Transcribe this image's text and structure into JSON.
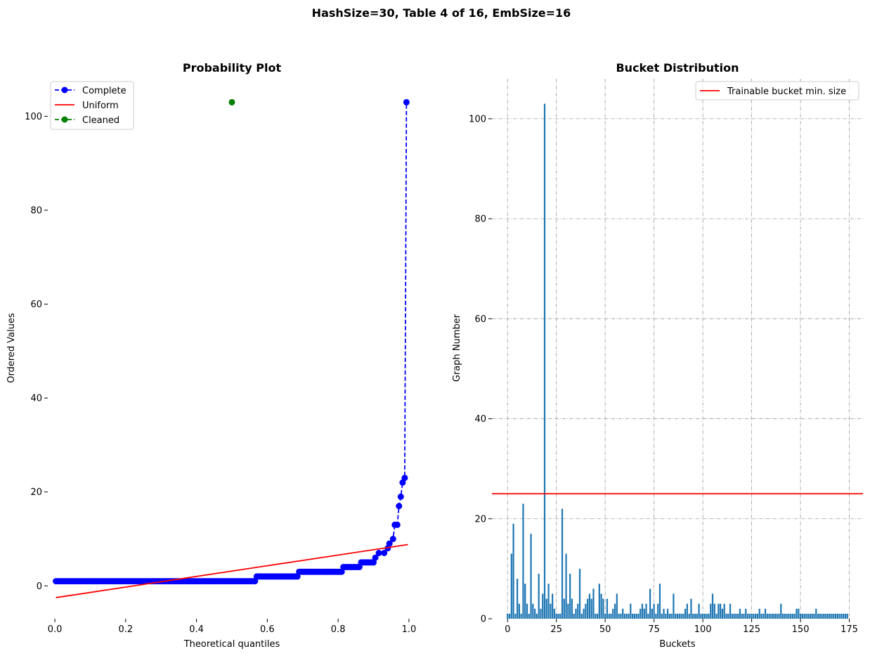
{
  "figure": {
    "suptitle": "HashSize=30, Table 4 of 16, EmbSize=16"
  },
  "chart_data": [
    {
      "type": "line",
      "title": "Probability Plot",
      "xlabel": "Theoretical quantiles",
      "ylabel": "Ordered Values",
      "xlim": [
        -0.02,
        1.02
      ],
      "ylim": [
        -7,
        108
      ],
      "xticks": [
        "0.0",
        "0.2",
        "0.4",
        "0.6",
        "0.8",
        "1.0"
      ],
      "yticks": [
        "0",
        "20",
        "40",
        "60",
        "80",
        "100"
      ],
      "grid": false,
      "legend": "top-left",
      "colors": {
        "complete": "#0000ff",
        "uniform": "#ff0000",
        "cleaned": "#008000"
      },
      "series": [
        {
          "name": "Complete",
          "style": "dashed-markers",
          "steps": [
            {
              "x_from": 0.003,
              "x_to": 0.565,
              "y": 1
            },
            {
              "x_from": 0.57,
              "x_to": 0.685,
              "y": 2
            },
            {
              "x_from": 0.69,
              "x_to": 0.81,
              "y": 3
            },
            {
              "x_from": 0.815,
              "x_to": 0.86,
              "y": 4
            },
            {
              "x_from": 0.865,
              "x_to": 0.9,
              "y": 5
            }
          ],
          "points": [
            [
              0.905,
              6
            ],
            [
              0.915,
              7
            ],
            [
              0.93,
              7
            ],
            [
              0.94,
              8
            ],
            [
              0.945,
              9
            ],
            [
              0.955,
              10
            ],
            [
              0.96,
              13
            ],
            [
              0.967,
              13
            ],
            [
              0.972,
              17
            ],
            [
              0.977,
              19
            ],
            [
              0.982,
              22
            ],
            [
              0.988,
              23
            ],
            [
              0.993,
              103
            ]
          ]
        },
        {
          "name": "Uniform",
          "style": "solid",
          "x": [
            0.003,
            0.997
          ],
          "y": [
            -2.5,
            8.8
          ]
        },
        {
          "name": "Cleaned",
          "style": "markers",
          "x": [
            0.5
          ],
          "y": [
            103
          ]
        }
      ]
    },
    {
      "type": "bar",
      "title": "Bucket Distribution",
      "xlabel": "Buckets",
      "ylabel": "Graph Number",
      "xlim": [
        -8,
        182
      ],
      "ylim": [
        0,
        108
      ],
      "xticks": [
        "0",
        "25",
        "50",
        "75",
        "100",
        "125",
        "150",
        "175"
      ],
      "yticks": [
        "0",
        "20",
        "40",
        "60",
        "80",
        "100"
      ],
      "grid": true,
      "legend": "top-right",
      "colors": {
        "bars": "#1f77b4",
        "threshold": "#ff0000"
      },
      "threshold": {
        "name": "Trainable bucket min. size",
        "value": 25
      },
      "values": [
        1,
        1,
        13,
        19,
        1,
        8,
        3,
        1,
        23,
        7,
        3,
        1,
        17,
        3,
        2,
        1,
        9,
        2,
        5,
        103,
        4,
        7,
        3,
        5,
        2,
        1,
        1,
        1,
        22,
        4,
        13,
        3,
        9,
        4,
        1,
        2,
        3,
        10,
        1,
        2,
        3,
        4,
        5,
        4,
        6,
        1,
        1,
        7,
        5,
        4,
        1,
        4,
        1,
        1,
        2,
        3,
        5,
        1,
        1,
        2,
        1,
        1,
        1,
        3,
        1,
        1,
        1,
        1,
        2,
        3,
        2,
        3,
        1,
        6,
        2,
        3,
        1,
        3,
        7,
        1,
        2,
        1,
        2,
        1,
        1,
        5,
        1,
        1,
        1,
        1,
        1,
        2,
        3,
        1,
        4,
        1,
        1,
        1,
        3,
        1,
        1,
        1,
        1,
        1,
        3,
        5,
        3,
        1,
        3,
        3,
        2,
        3,
        1,
        1,
        3,
        1,
        1,
        1,
        1,
        2,
        1,
        1,
        2,
        1,
        1,
        1,
        1,
        1,
        1,
        2,
        1,
        1,
        2,
        1,
        1,
        1,
        1,
        1,
        1,
        1,
        3,
        1,
        1,
        1,
        1,
        1,
        1,
        1,
        2,
        2,
        1,
        1,
        1,
        1,
        1,
        1,
        1,
        1,
        2,
        1,
        1,
        1,
        1,
        1,
        1,
        1,
        1,
        1,
        1,
        1,
        1,
        1,
        1,
        1,
        1
      ]
    }
  ]
}
